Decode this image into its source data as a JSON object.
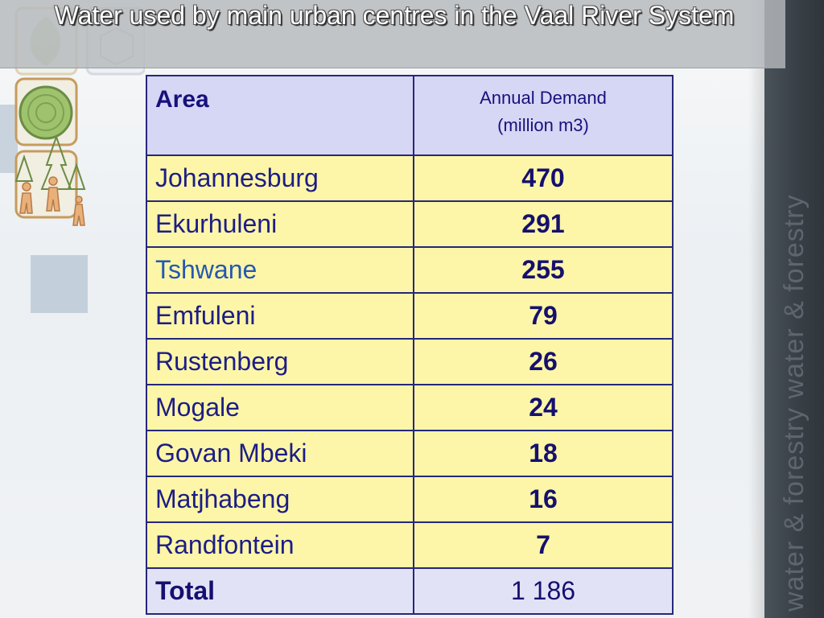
{
  "slide": {
    "title": "Water used by main urban centres in the Vaal River System",
    "watermark": "water & forestry   water & forestry",
    "colors": {
      "header_bg": "#d6d6f5",
      "row_bg": "#fdf6a8",
      "total_bg": "#e2e2f7",
      "border": "#26277a",
      "text": "#1c1d86",
      "right_bar": "#3a4148"
    }
  },
  "table": {
    "header": {
      "area": "Area",
      "demand_line1": "Annual Demand",
      "demand_line2": "(million m3)"
    },
    "rows": [
      {
        "area": "Johannesburg",
        "demand": "470"
      },
      {
        "area": "Ekurhuleni",
        "demand": "291"
      },
      {
        "area": "Tshwane",
        "demand": "255"
      },
      {
        "area": "Emfuleni",
        "demand": "79"
      },
      {
        "area": "Rustenberg",
        "demand": "26"
      },
      {
        "area": "Mogale",
        "demand": "24"
      },
      {
        "area": "Govan Mbeki",
        "demand": "18"
      },
      {
        "area": "Matjhabeng",
        "demand": "16"
      },
      {
        "area": "Randfontein",
        "demand": "7"
      }
    ],
    "total": {
      "label": "Total",
      "demand": "1 186"
    }
  },
  "decorations": {
    "icons": [
      "leaf-icon",
      "cube-icon",
      "wood-log-icon",
      "trees-icon",
      "hikers-icon"
    ]
  }
}
